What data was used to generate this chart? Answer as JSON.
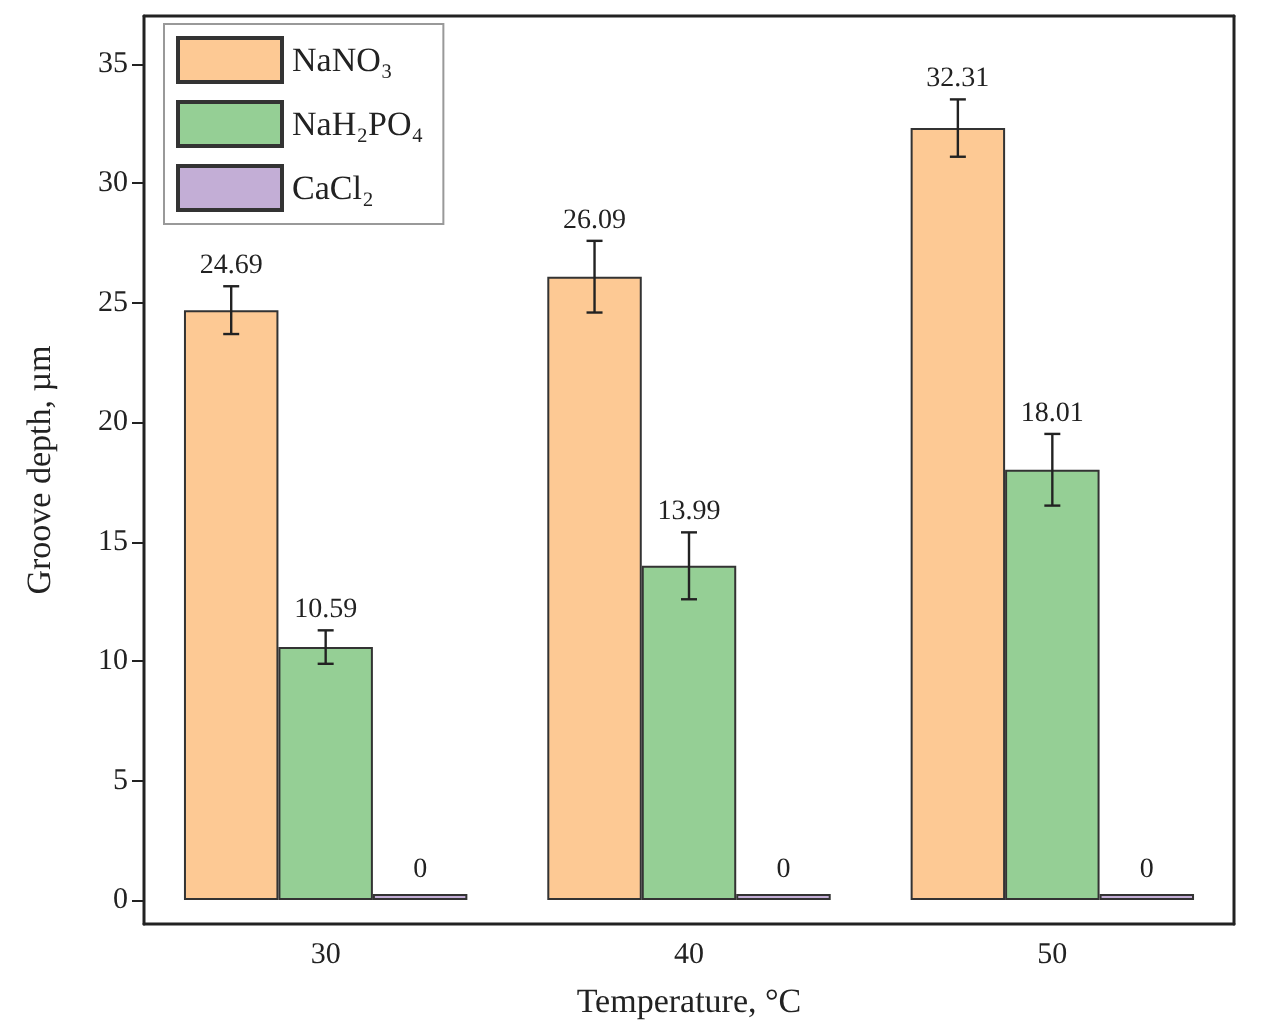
{
  "chart_data": {
    "type": "bar",
    "xlabel": "Temperature, °C",
    "ylabel": "Groove depth, µm",
    "categories": [
      "30",
      "40",
      "50"
    ],
    "series": [
      {
        "name": "NaNO₃",
        "color": "#fdc994",
        "values": [
          24.69,
          26.09,
          32.31
        ],
        "errors": [
          1.0,
          1.5,
          1.2
        ]
      },
      {
        "name": "NaH₂PO₄",
        "color": "#95cf95",
        "values": [
          10.59,
          13.99,
          18.01
        ],
        "errors": [
          0.7,
          1.4,
          1.5
        ]
      },
      {
        "name": "CaCl₂",
        "color": "#c3aed6",
        "values": [
          0,
          0,
          0
        ]
      }
    ],
    "ylim": [
      -1,
      37
    ],
    "yticks": [
      0,
      5,
      10,
      15,
      20,
      25,
      30,
      35
    ],
    "data_labels": true,
    "legend": "top left",
    "grid": false
  }
}
